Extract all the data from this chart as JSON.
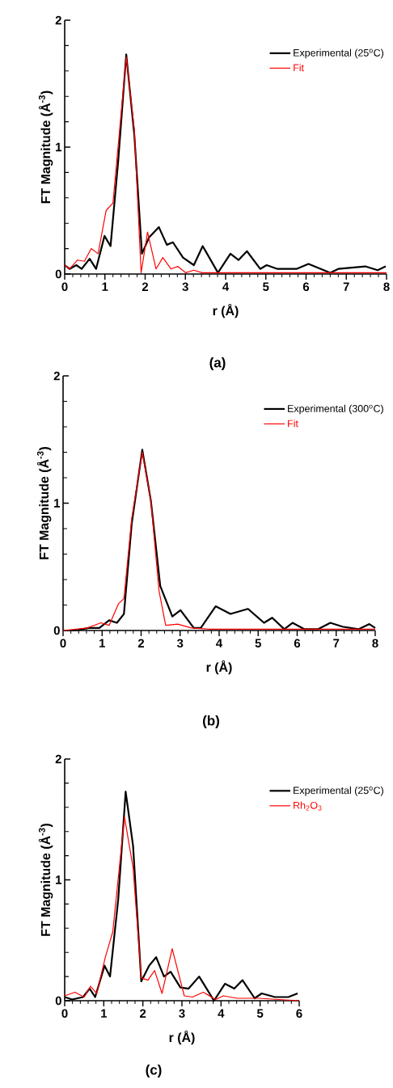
{
  "chart_data": [
    {
      "type": "line",
      "xlabel": "r (Å)",
      "ylabel": "FT Magnitude (Å$^{-3}$)",
      "annotations": [
        "(a)"
      ],
      "xlim": [
        0,
        8
      ],
      "ylim": [
        0,
        2
      ],
      "xticks": [
        0,
        {
          "value": 0.2,
          "label": null
        },
        {
          "value": 0.4,
          "label": null
        },
        {
          "value": 0.6,
          "label": null
        },
        {
          "value": 0.8,
          "label": null
        },
        1,
        {
          "value": 1.2,
          "label": null
        },
        {
          "value": 1.4,
          "label": null
        },
        {
          "value": 1.6,
          "label": null
        },
        {
          "value": 1.8,
          "label": null
        },
        2,
        {
          "value": 2.2,
          "label": null
        },
        {
          "value": 2.4,
          "label": null
        },
        {
          "value": 2.6,
          "label": null
        },
        {
          "value": 2.8,
          "label": null
        },
        3,
        {
          "value": 3.2,
          "label": null
        },
        {
          "value": 3.4,
          "label": null
        },
        {
          "value": 3.6,
          "label": null
        },
        {
          "value": 3.8,
          "label": null
        },
        4,
        {
          "value": 4.2,
          "label": null
        },
        {
          "value": 4.4,
          "label": null
        },
        {
          "value": 4.6,
          "label": null
        },
        {
          "value": 4.8,
          "label": null
        },
        5,
        {
          "value": 5.2,
          "label": null
        },
        {
          "value": 5.4,
          "label": null
        },
        {
          "value": 5.6,
          "label": null
        },
        {
          "value": 5.8,
          "label": null
        },
        6,
        {
          "value": 6.2,
          "label": null
        },
        {
          "value": 6.4,
          "label": null
        },
        {
          "value": 6.6,
          "label": null
        },
        {
          "value": 6.8,
          "label": null
        },
        7,
        {
          "value": 7.2,
          "label": null
        },
        {
          "value": 7.4,
          "label": null
        },
        {
          "value": 7.6,
          "label": null
        },
        {
          "value": 7.8,
          "label": null
        },
        8
      ],
      "yticks": [
        0,
        {
          "value": 0.2,
          "label": null
        },
        {
          "value": 0.4,
          "label": null
        },
        {
          "value": 0.6,
          "label": null
        },
        {
          "value": 0.8,
          "label": null
        },
        1,
        {
          "value": 1.2,
          "label": null
        },
        {
          "value": 1.4,
          "label": null
        },
        {
          "value": 1.6,
          "label": null
        },
        {
          "value": 1.8,
          "label": null
        },
        2
      ],
      "legend": "top right",
      "series": [
        {
          "name": "Experimental (25$^{o}$C)",
          "color": "#000000",
          "x": [
            0,
            0.12,
            0.29,
            0.42,
            0.62,
            0.78,
            0.99,
            1.14,
            1.33,
            1.53,
            1.73,
            1.92,
            2.1,
            2.34,
            2.54,
            2.69,
            2.94,
            3.21,
            3.43,
            3.81,
            4.12,
            4.32,
            4.53,
            4.86,
            5.02,
            5.29,
            5.76,
            6.06,
            6.6,
            6.8,
            7.47,
            7.78,
            7.98
          ],
          "values": [
            0.07,
            0.04,
            0.07,
            0.04,
            0.12,
            0.04,
            0.3,
            0.22,
            0.89,
            1.73,
            1.1,
            0.16,
            0.29,
            0.37,
            0.23,
            0.25,
            0.13,
            0.07,
            0.22,
            0.01,
            0.16,
            0.11,
            0.18,
            0.04,
            0.07,
            0.04,
            0.04,
            0.08,
            0.01,
            0.04,
            0.06,
            0.03,
            0.06
          ]
        },
        {
          "name": "Fit",
          "color": "#ff0000",
          "x": [
            0,
            0.12,
            0.32,
            0.49,
            0.66,
            0.83,
            1.03,
            1.2,
            1.53,
            1.73,
            1.9,
            2.06,
            2.27,
            2.44,
            2.64,
            2.81,
            3.01,
            3.21,
            3.41,
            8
          ],
          "values": [
            0.07,
            0.04,
            0.11,
            0.1,
            0.2,
            0.16,
            0.5,
            0.56,
            1.71,
            1.14,
            0.01,
            0.33,
            0.04,
            0.13,
            0.04,
            0.06,
            0.01,
            0.03,
            0.01,
            0.01
          ]
        }
      ]
    },
    {
      "type": "line",
      "xlabel": "r (Å)",
      "ylabel": "FT Magnitude (Å$^{-3}$)",
      "annotations": [
        "(b)"
      ],
      "xlim": [
        0,
        8
      ],
      "ylim": [
        0,
        2
      ],
      "xticks": [
        0,
        {
          "value": 0.2,
          "label": null
        },
        {
          "value": 0.4,
          "label": null
        },
        {
          "value": 0.6,
          "label": null
        },
        {
          "value": 0.8,
          "label": null
        },
        1,
        {
          "value": 1.2,
          "label": null
        },
        {
          "value": 1.4,
          "label": null
        },
        {
          "value": 1.6,
          "label": null
        },
        {
          "value": 1.8,
          "label": null
        },
        2,
        {
          "value": 2.2,
          "label": null
        },
        {
          "value": 2.4,
          "label": null
        },
        {
          "value": 2.6,
          "label": null
        },
        {
          "value": 2.8,
          "label": null
        },
        3,
        {
          "value": 3.2,
          "label": null
        },
        {
          "value": 3.4,
          "label": null
        },
        {
          "value": 3.6,
          "label": null
        },
        {
          "value": 3.8,
          "label": null
        },
        4,
        {
          "value": 4.2,
          "label": null
        },
        {
          "value": 4.4,
          "label": null
        },
        {
          "value": 4.6,
          "label": null
        },
        {
          "value": 4.8,
          "label": null
        },
        5,
        {
          "value": 5.2,
          "label": null
        },
        {
          "value": 5.4,
          "label": null
        },
        {
          "value": 5.6,
          "label": null
        },
        {
          "value": 5.8,
          "label": null
        },
        6,
        {
          "value": 6.2,
          "label": null
        },
        {
          "value": 6.4,
          "label": null
        },
        {
          "value": 6.6,
          "label": null
        },
        {
          "value": 6.8,
          "label": null
        },
        7,
        {
          "value": 7.2,
          "label": null
        },
        {
          "value": 7.4,
          "label": null
        },
        {
          "value": 7.6,
          "label": null
        },
        {
          "value": 7.8,
          "label": null
        },
        8
      ],
      "yticks": [
        0,
        {
          "value": 0.2,
          "label": null
        },
        {
          "value": 0.4,
          "label": null
        },
        {
          "value": 0.6,
          "label": null
        },
        {
          "value": 0.8,
          "label": null
        },
        1,
        {
          "value": 1.2,
          "label": null
        },
        {
          "value": 1.4,
          "label": null
        },
        {
          "value": 1.6,
          "label": null
        },
        {
          "value": 1.8,
          "label": null
        },
        2
      ],
      "legend": "top right",
      "series": [
        {
          "name": "Experimental (300$^{o}$C)",
          "color": "#000000",
          "x": [
            0,
            0.31,
            0.66,
            0.93,
            1.18,
            1.38,
            1.56,
            1.76,
            2.03,
            2.25,
            2.49,
            2.8,
            3.01,
            3.35,
            3.53,
            3.91,
            4.29,
            4.74,
            5.15,
            5.36,
            5.67,
            5.88,
            6.19,
            6.53,
            6.85,
            7.16,
            7.57,
            7.85,
            8
          ],
          "values": [
            0,
            0,
            0.02,
            0.02,
            0.08,
            0.06,
            0.13,
            0.84,
            1.42,
            1.02,
            0.35,
            0.11,
            0.16,
            0.02,
            0.02,
            0.19,
            0.13,
            0.17,
            0.06,
            0.1,
            0.01,
            0.06,
            0.01,
            0.01,
            0.06,
            0.03,
            0.01,
            0.05,
            0.02
          ]
        },
        {
          "name": "Fit",
          "color": "#ff0000",
          "x": [
            0,
            0.31,
            0.62,
            0.97,
            1.18,
            1.42,
            1.56,
            1.76,
            2.03,
            2.25,
            2.46,
            2.63,
            2.94,
            3.29,
            3.77,
            8
          ],
          "values": [
            0,
            0.01,
            0.02,
            0.06,
            0.04,
            0.21,
            0.25,
            0.88,
            1.4,
            1.02,
            0.31,
            0.04,
            0.05,
            0.02,
            0.01,
            0.01
          ]
        }
      ]
    },
    {
      "type": "line",
      "xlabel": "r (Å)",
      "ylabel": "FT Magnitude (Å$^{-3}$)",
      "annotations": [
        "(c)"
      ],
      "xlim": [
        0,
        6
      ],
      "ylim": [
        0,
        2
      ],
      "xticks": [
        0,
        {
          "value": 0.2,
          "label": null
        },
        {
          "value": 0.4,
          "label": null
        },
        {
          "value": 0.6,
          "label": null
        },
        {
          "value": 0.8,
          "label": null
        },
        1,
        {
          "value": 1.2,
          "label": null
        },
        {
          "value": 1.4,
          "label": null
        },
        {
          "value": 1.6,
          "label": null
        },
        {
          "value": 1.8,
          "label": null
        },
        2,
        {
          "value": 2.2,
          "label": null
        },
        {
          "value": 2.4,
          "label": null
        },
        {
          "value": 2.6,
          "label": null
        },
        {
          "value": 2.8,
          "label": null
        },
        3,
        {
          "value": 3.2,
          "label": null
        },
        {
          "value": 3.4,
          "label": null
        },
        {
          "value": 3.6,
          "label": null
        },
        {
          "value": 3.8,
          "label": null
        },
        4,
        {
          "value": 4.2,
          "label": null
        },
        {
          "value": 4.4,
          "label": null
        },
        {
          "value": 4.6,
          "label": null
        },
        {
          "value": 4.8,
          "label": null
        },
        5,
        {
          "value": 5.2,
          "label": null
        },
        {
          "value": 5.4,
          "label": null
        },
        {
          "value": 5.6,
          "label": null
        },
        {
          "value": 5.8,
          "label": null
        },
        6
      ],
      "yticks": [
        0,
        {
          "value": 0.2,
          "label": null
        },
        {
          "value": 0.4,
          "label": null
        },
        {
          "value": 0.6,
          "label": null
        },
        {
          "value": 0.8,
          "label": null
        },
        1,
        {
          "value": 1.2,
          "label": null
        },
        {
          "value": 1.4,
          "label": null
        },
        {
          "value": 1.6,
          "label": null
        },
        {
          "value": 1.8,
          "label": null
        },
        2
      ],
      "legend": "top right",
      "series": [
        {
          "name": "Experimental (25$^{o}$C)",
          "color": "#000000",
          "x": [
            0,
            0.19,
            0.47,
            0.64,
            0.78,
            1.02,
            1.16,
            1.37,
            1.56,
            1.75,
            1.96,
            2.16,
            2.34,
            2.54,
            2.71,
            2.96,
            3.17,
            3.44,
            3.82,
            4.1,
            4.34,
            4.55,
            4.86,
            5.04,
            5.38,
            5.72,
            5.96
          ],
          "values": [
            0.03,
            0.01,
            0.03,
            0.1,
            0.03,
            0.29,
            0.2,
            0.84,
            1.73,
            1.28,
            0.16,
            0.29,
            0.36,
            0.2,
            0.24,
            0.11,
            0.1,
            0.2,
            0,
            0.14,
            0.1,
            0.17,
            0.02,
            0.06,
            0.03,
            0.03,
            0.06
          ]
        },
        {
          "name": "Rh$_{2}$O$_{3}$",
          "color": "#ff0000",
          "x": [
            0,
            0.26,
            0.5,
            0.66,
            0.82,
            1.04,
            1.23,
            1.53,
            1.75,
            1.96,
            2.13,
            2.3,
            2.49,
            2.75,
            3.06,
            3.27,
            3.55,
            3.86,
            4.06,
            4.41,
            4.96,
            6
          ],
          "values": [
            0.04,
            0.07,
            0.03,
            0.12,
            0.06,
            0.36,
            0.57,
            1.52,
            1.1,
            0.19,
            0.17,
            0.25,
            0.06,
            0.43,
            0.04,
            0.03,
            0.07,
            0.01,
            0.04,
            0.02,
            0.02,
            0
          ]
        }
      ]
    }
  ]
}
